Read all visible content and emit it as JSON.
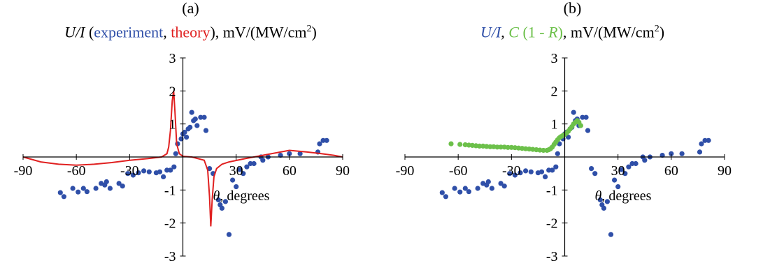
{
  "chart_data": [
    {
      "panel_label": "(a)",
      "title": {
        "prefix": "U/I",
        "open": " (",
        "series1": "experiment",
        "sep": ", ",
        "series2": "theory",
        "close": "), ",
        "units": "mV/(MW/cm",
        "sup": "2",
        "units_end": ")"
      },
      "type": "scatter",
      "xlim": [
        -90,
        90
      ],
      "ylim": [
        -3,
        3
      ],
      "xticks": [
        -90,
        -60,
        -30,
        30,
        60,
        90
      ],
      "yticks": [
        -3,
        -2,
        -1,
        1,
        2,
        3
      ],
      "xlabel_var": "θ",
      "xlabel_rest": ", degrees",
      "grid": false,
      "series": [
        {
          "kind": "points",
          "color": "#2f4fa8",
          "points": [
            [
              -69,
              -1.08
            ],
            [
              -67,
              -1.2
            ],
            [
              -62,
              -0.95
            ],
            [
              -59,
              -1.06
            ],
            [
              -56,
              -0.95
            ],
            [
              -54,
              -1.05
            ],
            [
              -49,
              -0.95
            ],
            [
              -46,
              -0.8
            ],
            [
              -44,
              -0.85
            ],
            [
              -43,
              -0.75
            ],
            [
              -41,
              -0.95
            ],
            [
              -36,
              -0.8
            ],
            [
              -34,
              -0.88
            ],
            [
              -31,
              -0.5
            ],
            [
              -28,
              -0.55
            ],
            [
              -25,
              -0.48
            ],
            [
              -22,
              -0.42
            ],
            [
              -19,
              -0.45
            ],
            [
              -15,
              -0.48
            ],
            [
              -13,
              -0.45
            ],
            [
              -11,
              -0.6
            ],
            [
              -9,
              -0.4
            ],
            [
              -7,
              -0.4
            ],
            [
              -5,
              -0.3
            ],
            [
              -4,
              0.1
            ],
            [
              -3,
              0.4
            ],
            [
              -1,
              0.55
            ],
            [
              0,
              0.7
            ],
            [
              1,
              0.75
            ],
            [
              2,
              0.6
            ],
            [
              3,
              0.85
            ],
            [
              4,
              0.9
            ],
            [
              5,
              1.35
            ],
            [
              6,
              1.1
            ],
            [
              7,
              1.15
            ],
            [
              8,
              0.95
            ],
            [
              10,
              1.2
            ],
            [
              12,
              1.2
            ],
            [
              13,
              0.8
            ],
            [
              15,
              -0.35
            ],
            [
              17,
              -0.5
            ],
            [
              20,
              -1.3
            ],
            [
              21,
              -1.45
            ],
            [
              22,
              -1.55
            ],
            [
              24,
              -1.35
            ],
            [
              26,
              -2.35
            ],
            [
              28,
              -0.7
            ],
            [
              30,
              -0.9
            ],
            [
              32,
              -0.38
            ],
            [
              34,
              -0.5
            ],
            [
              36,
              -0.3
            ],
            [
              38,
              -0.2
            ],
            [
              40,
              -0.2
            ],
            [
              44,
              0.0
            ],
            [
              45,
              -0.1
            ],
            [
              48,
              0.0
            ],
            [
              55,
              0.05
            ],
            [
              60,
              0.1
            ],
            [
              66,
              0.1
            ],
            [
              76,
              0.15
            ],
            [
              77,
              0.4
            ],
            [
              79,
              0.5
            ],
            [
              81,
              0.5
            ]
          ]
        },
        {
          "kind": "line",
          "color": "#e02020",
          "points": [
            [
              -90,
              0.0
            ],
            [
              -80,
              -0.15
            ],
            [
              -70,
              -0.22
            ],
            [
              -60,
              -0.25
            ],
            [
              -50,
              -0.22
            ],
            [
              -40,
              -0.17
            ],
            [
              -30,
              -0.1
            ],
            [
              -20,
              -0.05
            ],
            [
              -12,
              0.0
            ],
            [
              -9,
              0.1
            ],
            [
              -8,
              0.3
            ],
            [
              -7,
              0.8
            ],
            [
              -6,
              1.7
            ],
            [
              -5.2,
              2.0
            ],
            [
              -4.5,
              1.4
            ],
            [
              -3.5,
              0.4
            ],
            [
              -2,
              0.1
            ],
            [
              0,
              0.02
            ],
            [
              5,
              0.0
            ],
            [
              12,
              -0.1
            ],
            [
              14,
              -0.4
            ],
            [
              15,
              -1.2
            ],
            [
              15.7,
              -2.1
            ],
            [
              16.5,
              -1.3
            ],
            [
              17.5,
              -0.6
            ],
            [
              19,
              -0.35
            ],
            [
              22,
              -0.22
            ],
            [
              26,
              -0.15
            ],
            [
              35,
              -0.05
            ],
            [
              45,
              0.05
            ],
            [
              55,
              0.15
            ],
            [
              60,
              0.2
            ],
            [
              70,
              0.15
            ],
            [
              78,
              0.1
            ],
            [
              85,
              0.05
            ],
            [
              90,
              0.0
            ]
          ]
        }
      ]
    },
    {
      "panel_label": "(b)",
      "title": {
        "prefix": "U/I",
        "sep": ", ",
        "series2_c": "C",
        "series2_rest": " (1 - ",
        "series2_r": "R",
        "series2_end": ")",
        "comma": ", ",
        "units": "mV/(MW/cm",
        "sup": "2",
        "units_end": ")"
      },
      "type": "scatter",
      "xlim": [
        -90,
        90
      ],
      "ylim": [
        -3,
        3
      ],
      "xticks": [
        -90,
        -60,
        -30,
        30,
        60,
        90
      ],
      "yticks": [
        -3,
        -2,
        -1,
        1,
        2,
        3
      ],
      "xlabel_var": "θ",
      "xlabel_rest": ", degrees",
      "grid": false,
      "series": [
        {
          "kind": "points",
          "color": "#2f4fa8",
          "points": [
            [
              -69,
              -1.08
            ],
            [
              -67,
              -1.2
            ],
            [
              -62,
              -0.95
            ],
            [
              -59,
              -1.06
            ],
            [
              -56,
              -0.95
            ],
            [
              -54,
              -1.05
            ],
            [
              -49,
              -0.95
            ],
            [
              -46,
              -0.8
            ],
            [
              -44,
              -0.85
            ],
            [
              -43,
              -0.75
            ],
            [
              -41,
              -0.95
            ],
            [
              -36,
              -0.8
            ],
            [
              -34,
              -0.88
            ],
            [
              -31,
              -0.5
            ],
            [
              -28,
              -0.55
            ],
            [
              -25,
              -0.48
            ],
            [
              -22,
              -0.42
            ],
            [
              -19,
              -0.45
            ],
            [
              -15,
              -0.48
            ],
            [
              -13,
              -0.45
            ],
            [
              -11,
              -0.6
            ],
            [
              -9,
              -0.4
            ],
            [
              -7,
              -0.4
            ],
            [
              -5,
              -0.3
            ],
            [
              -4,
              0.1
            ],
            [
              -3,
              0.4
            ],
            [
              -1,
              0.55
            ],
            [
              0,
              0.7
            ],
            [
              1,
              0.75
            ],
            [
              2,
              0.6
            ],
            [
              3,
              0.85
            ],
            [
              4,
              0.9
            ],
            [
              5,
              1.35
            ],
            [
              6,
              1.1
            ],
            [
              7,
              1.15
            ],
            [
              8,
              0.95
            ],
            [
              10,
              1.2
            ],
            [
              12,
              1.2
            ],
            [
              13,
              0.8
            ],
            [
              15,
              -0.35
            ],
            [
              17,
              -0.5
            ],
            [
              20,
              -1.3
            ],
            [
              21,
              -1.45
            ],
            [
              22,
              -1.55
            ],
            [
              24,
              -1.35
            ],
            [
              26,
              -2.35
            ],
            [
              28,
              -0.7
            ],
            [
              30,
              -0.9
            ],
            [
              32,
              -0.38
            ],
            [
              34,
              -0.5
            ],
            [
              36,
              -0.3
            ],
            [
              38,
              -0.2
            ],
            [
              40,
              -0.2
            ],
            [
              44,
              0.0
            ],
            [
              45,
              -0.1
            ],
            [
              48,
              0.0
            ],
            [
              55,
              0.05
            ],
            [
              60,
              0.1
            ],
            [
              66,
              0.1
            ],
            [
              76,
              0.15
            ],
            [
              77,
              0.4
            ],
            [
              79,
              0.5
            ],
            [
              81,
              0.5
            ]
          ]
        },
        {
          "kind": "points",
          "color": "#6cc04a",
          "points": [
            [
              -64,
              0.4
            ],
            [
              -59,
              0.38
            ],
            [
              -56,
              0.37
            ],
            [
              -54,
              0.36
            ],
            [
              -52,
              0.35
            ],
            [
              -50,
              0.34
            ],
            [
              -48,
              0.33
            ],
            [
              -46,
              0.33
            ],
            [
              -44,
              0.32
            ],
            [
              -42,
              0.31
            ],
            [
              -40,
              0.31
            ],
            [
              -38,
              0.3
            ],
            [
              -36,
              0.3
            ],
            [
              -34,
              0.3
            ],
            [
              -32,
              0.29
            ],
            [
              -30,
              0.29
            ],
            [
              -28,
              0.28
            ],
            [
              -26,
              0.27
            ],
            [
              -24,
              0.26
            ],
            [
              -22,
              0.25
            ],
            [
              -20,
              0.24
            ],
            [
              -18,
              0.23
            ],
            [
              -16,
              0.22
            ],
            [
              -14,
              0.21
            ],
            [
              -12,
              0.2
            ],
            [
              -10,
              0.2
            ],
            [
              -9,
              0.22
            ],
            [
              -8,
              0.25
            ],
            [
              -7,
              0.3
            ],
            [
              -6,
              0.38
            ],
            [
              -5,
              0.45
            ],
            [
              -4,
              0.52
            ],
            [
              -3,
              0.58
            ],
            [
              -2,
              0.62
            ],
            [
              -1,
              0.65
            ],
            [
              0,
              0.68
            ],
            [
              1,
              0.72
            ],
            [
              2,
              0.78
            ],
            [
              3,
              0.85
            ],
            [
              4,
              0.92
            ],
            [
              5,
              1.0
            ],
            [
              6,
              1.05
            ],
            [
              7,
              1.1
            ],
            [
              8,
              1.05
            ],
            [
              9,
              0.95
            ]
          ]
        }
      ]
    }
  ]
}
